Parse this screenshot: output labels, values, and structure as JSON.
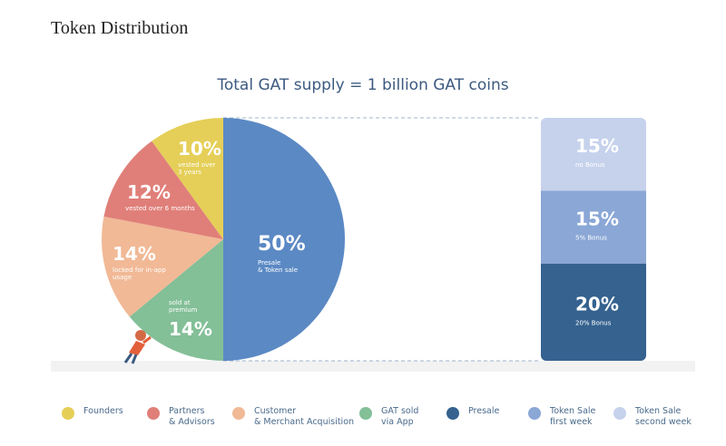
{
  "page": {
    "heading": "Token Distribution",
    "subtitle": "Total GAT supply = 1 billion GAT coins"
  },
  "colors": {
    "founders": "#e5cf58",
    "partners": "#e07f79",
    "customer": "#f1b996",
    "gat_sold": "#83bf97",
    "presale": "#5b89c4",
    "sale_week1": "#8aa7d6",
    "sale_week2": "#c6d2ec",
    "bar_dark": "#35628f",
    "label_blue": "#3c5a80"
  },
  "chart_data": [
    {
      "type": "pie",
      "title": "Total GAT supply = 1 billion GAT coins",
      "slices": [
        {
          "name": "Presale",
          "value": 50,
          "label": "50%",
          "note": "Presale\n& Token sale",
          "color": "#5b89c4"
        },
        {
          "name": "GAT sold via App",
          "value": 14,
          "label": "14%",
          "note": "sold at\npremium",
          "color": "#83bf97"
        },
        {
          "name": "Customer & Merchant Acquisition",
          "value": 14,
          "label": "14%",
          "note": "locked for in-app\nusage",
          "color": "#f1b996"
        },
        {
          "name": "Partners & Advisors",
          "value": 12,
          "label": "12%",
          "note": "vested over 6 months",
          "color": "#e07f79"
        },
        {
          "name": "Founders",
          "value": 10,
          "label": "10%",
          "note": "vested over\n3 years",
          "color": "#e5cf58"
        }
      ]
    },
    {
      "type": "bar",
      "stacked": true,
      "segments": [
        {
          "name": "Token Sale second week",
          "value": 15,
          "label": "15%",
          "note": "no Bonus",
          "color": "#c6d2ec"
        },
        {
          "name": "Token Sale first week",
          "value": 15,
          "label": "15%",
          "note": "5% Bonus",
          "color": "#8aa7d6"
        },
        {
          "name": "Presale",
          "value": 20,
          "label": "20%",
          "note": "20% Bonus",
          "color": "#35628f"
        }
      ]
    }
  ],
  "legend": [
    {
      "label": "Founders",
      "color": "#e5cf58"
    },
    {
      "label": "Partners\n& Advisors",
      "color": "#e07f79"
    },
    {
      "label": "Customer\n& Merchant Acquisition",
      "color": "#f1b996"
    },
    {
      "label": "GAT sold\nvia App",
      "color": "#83bf97"
    },
    {
      "label": "Presale",
      "color": "#35628f"
    },
    {
      "label": "Token Sale\nfirst week",
      "color": "#8aa7d6"
    },
    {
      "label": "Token Sale\nsecond week",
      "color": "#c6d2ec"
    }
  ]
}
